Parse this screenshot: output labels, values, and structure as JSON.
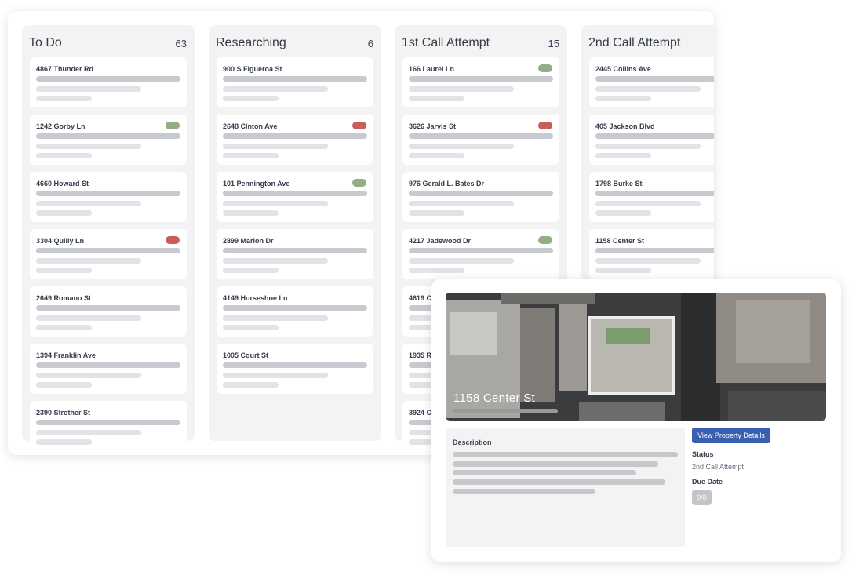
{
  "board": {
    "columns": [
      {
        "title": "To Do",
        "count": "63",
        "cards": [
          {
            "address": "4867 Thunder Rd",
            "tag": null
          },
          {
            "address": "1242 Gorby Ln",
            "tag": "green"
          },
          {
            "address": "4660 Howard St",
            "tag": null
          },
          {
            "address": "3304 Quilly Ln",
            "tag": "red"
          },
          {
            "address": "2649 Romano St",
            "tag": null
          },
          {
            "address": "1394 Franklin Ave",
            "tag": null
          },
          {
            "address": "2390 Strother St",
            "tag": null
          }
        ]
      },
      {
        "title": "Researching",
        "count": "6",
        "cards": [
          {
            "address": "900 S Figueroa St",
            "tag": null
          },
          {
            "address": "2648 Cinton Ave",
            "tag": "red"
          },
          {
            "address": "101 Pennington Ave",
            "tag": "green"
          },
          {
            "address": "2899 Marion Dr",
            "tag": null
          },
          {
            "address": "4149 Horseshoe Ln",
            "tag": null
          },
          {
            "address": "1005 Court St",
            "tag": null
          }
        ]
      },
      {
        "title": "1st Call Attempt",
        "count": "15",
        "cards": [
          {
            "address": "166 Laurel Ln",
            "tag": "green"
          },
          {
            "address": "3626 Jarvis St",
            "tag": "red"
          },
          {
            "address": "976 Gerald L. Bates Dr",
            "tag": null
          },
          {
            "address": "4217 Jadewood Dr",
            "tag": "green"
          },
          {
            "address": "4619 C",
            "tag": null
          },
          {
            "address": "1935 R",
            "tag": null
          },
          {
            "address": "3924 C",
            "tag": null
          }
        ]
      },
      {
        "title": "2nd Call Attempt",
        "count": "",
        "cards": [
          {
            "address": "2445 Collins Ave",
            "tag": null
          },
          {
            "address": "405 Jackson Blvd",
            "tag": null
          },
          {
            "address": "1798 Burke St",
            "tag": null
          },
          {
            "address": "1158 Center St",
            "tag": null
          }
        ]
      }
    ],
    "tag_colors": {
      "green": "#93ad86",
      "red": "#c85d5a"
    }
  },
  "detail": {
    "title": "1158 Center St",
    "description_label": "Description",
    "view_button": "View Property Details",
    "status_label": "Status",
    "status_value": "2nd Call Attempt",
    "due_label": "Due Date",
    "due_value": "9/8",
    "accent": "#3960b0"
  }
}
